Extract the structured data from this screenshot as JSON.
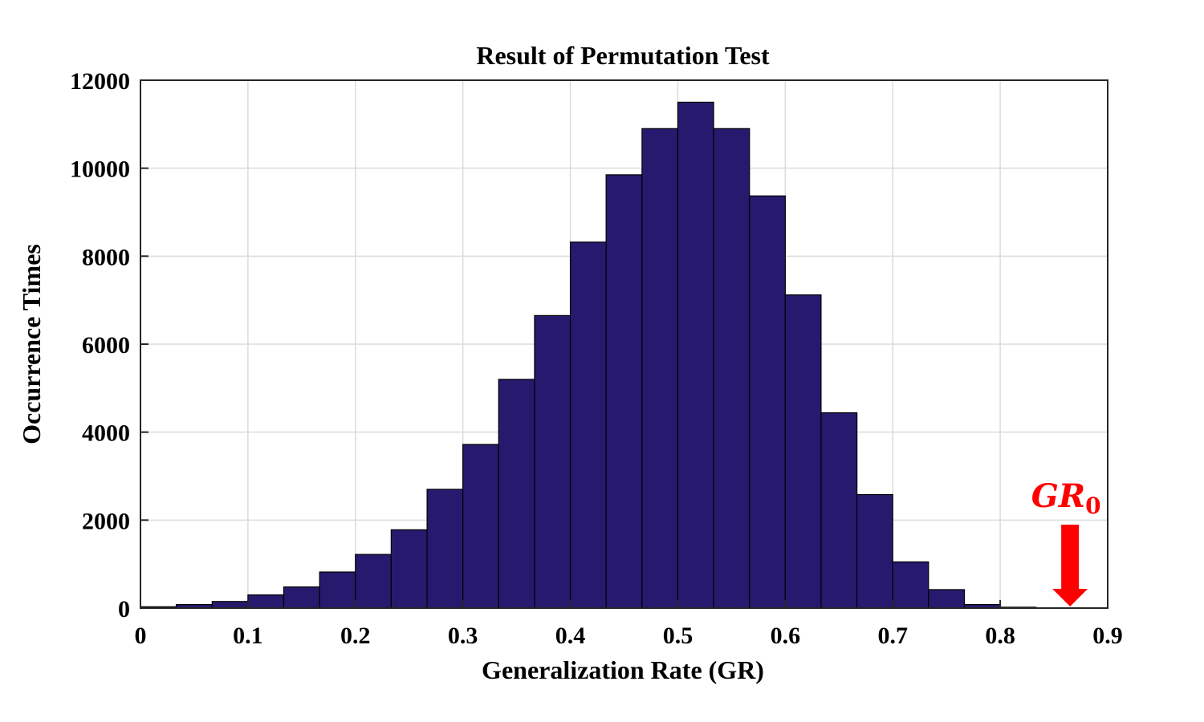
{
  "chart_data": {
    "type": "bar",
    "title": "Result of Permutation Test",
    "xlabel": "Generalization Rate (GR)",
    "ylabel": "Occurrence Times",
    "xlim": [
      0,
      0.9
    ],
    "ylim": [
      0,
      12000
    ],
    "xticks": [
      "0",
      "0.1",
      "0.2",
      "0.3",
      "0.4",
      "0.5",
      "0.6",
      "0.7",
      "0.8",
      "0.9"
    ],
    "yticks": [
      "0",
      "2000",
      "4000",
      "6000",
      "8000",
      "10000",
      "12000"
    ],
    "grid": true,
    "bar_color": "#271a6e",
    "bins": [
      [
        0.0,
        0.0333
      ],
      [
        0.0333,
        0.0667
      ],
      [
        0.0667,
        0.1
      ],
      [
        0.1,
        0.1333
      ],
      [
        0.1333,
        0.1667
      ],
      [
        0.1667,
        0.2
      ],
      [
        0.2,
        0.2333
      ],
      [
        0.2333,
        0.2667
      ],
      [
        0.2667,
        0.3
      ],
      [
        0.3,
        0.3333
      ],
      [
        0.3333,
        0.3667
      ],
      [
        0.3667,
        0.4
      ],
      [
        0.4,
        0.4333
      ],
      [
        0.4333,
        0.4667
      ],
      [
        0.4667,
        0.5
      ],
      [
        0.5,
        0.5333
      ],
      [
        0.5333,
        0.5667
      ],
      [
        0.5667,
        0.6
      ],
      [
        0.6,
        0.6333
      ],
      [
        0.6333,
        0.6667
      ],
      [
        0.6667,
        0.7
      ],
      [
        0.7,
        0.7333
      ],
      [
        0.7333,
        0.7667
      ],
      [
        0.7667,
        0.8
      ],
      [
        0.8,
        0.8333
      ]
    ],
    "values": [
      30,
      80,
      150,
      300,
      480,
      820,
      1220,
      1780,
      2700,
      3720,
      5200,
      6650,
      8320,
      9850,
      10900,
      11500,
      10900,
      9370,
      7120,
      4440,
      2580,
      1050,
      420,
      80,
      20
    ],
    "annotation": {
      "label_main": "GR",
      "label_sub": "0",
      "x": 0.865,
      "color": "#ff0000"
    }
  }
}
